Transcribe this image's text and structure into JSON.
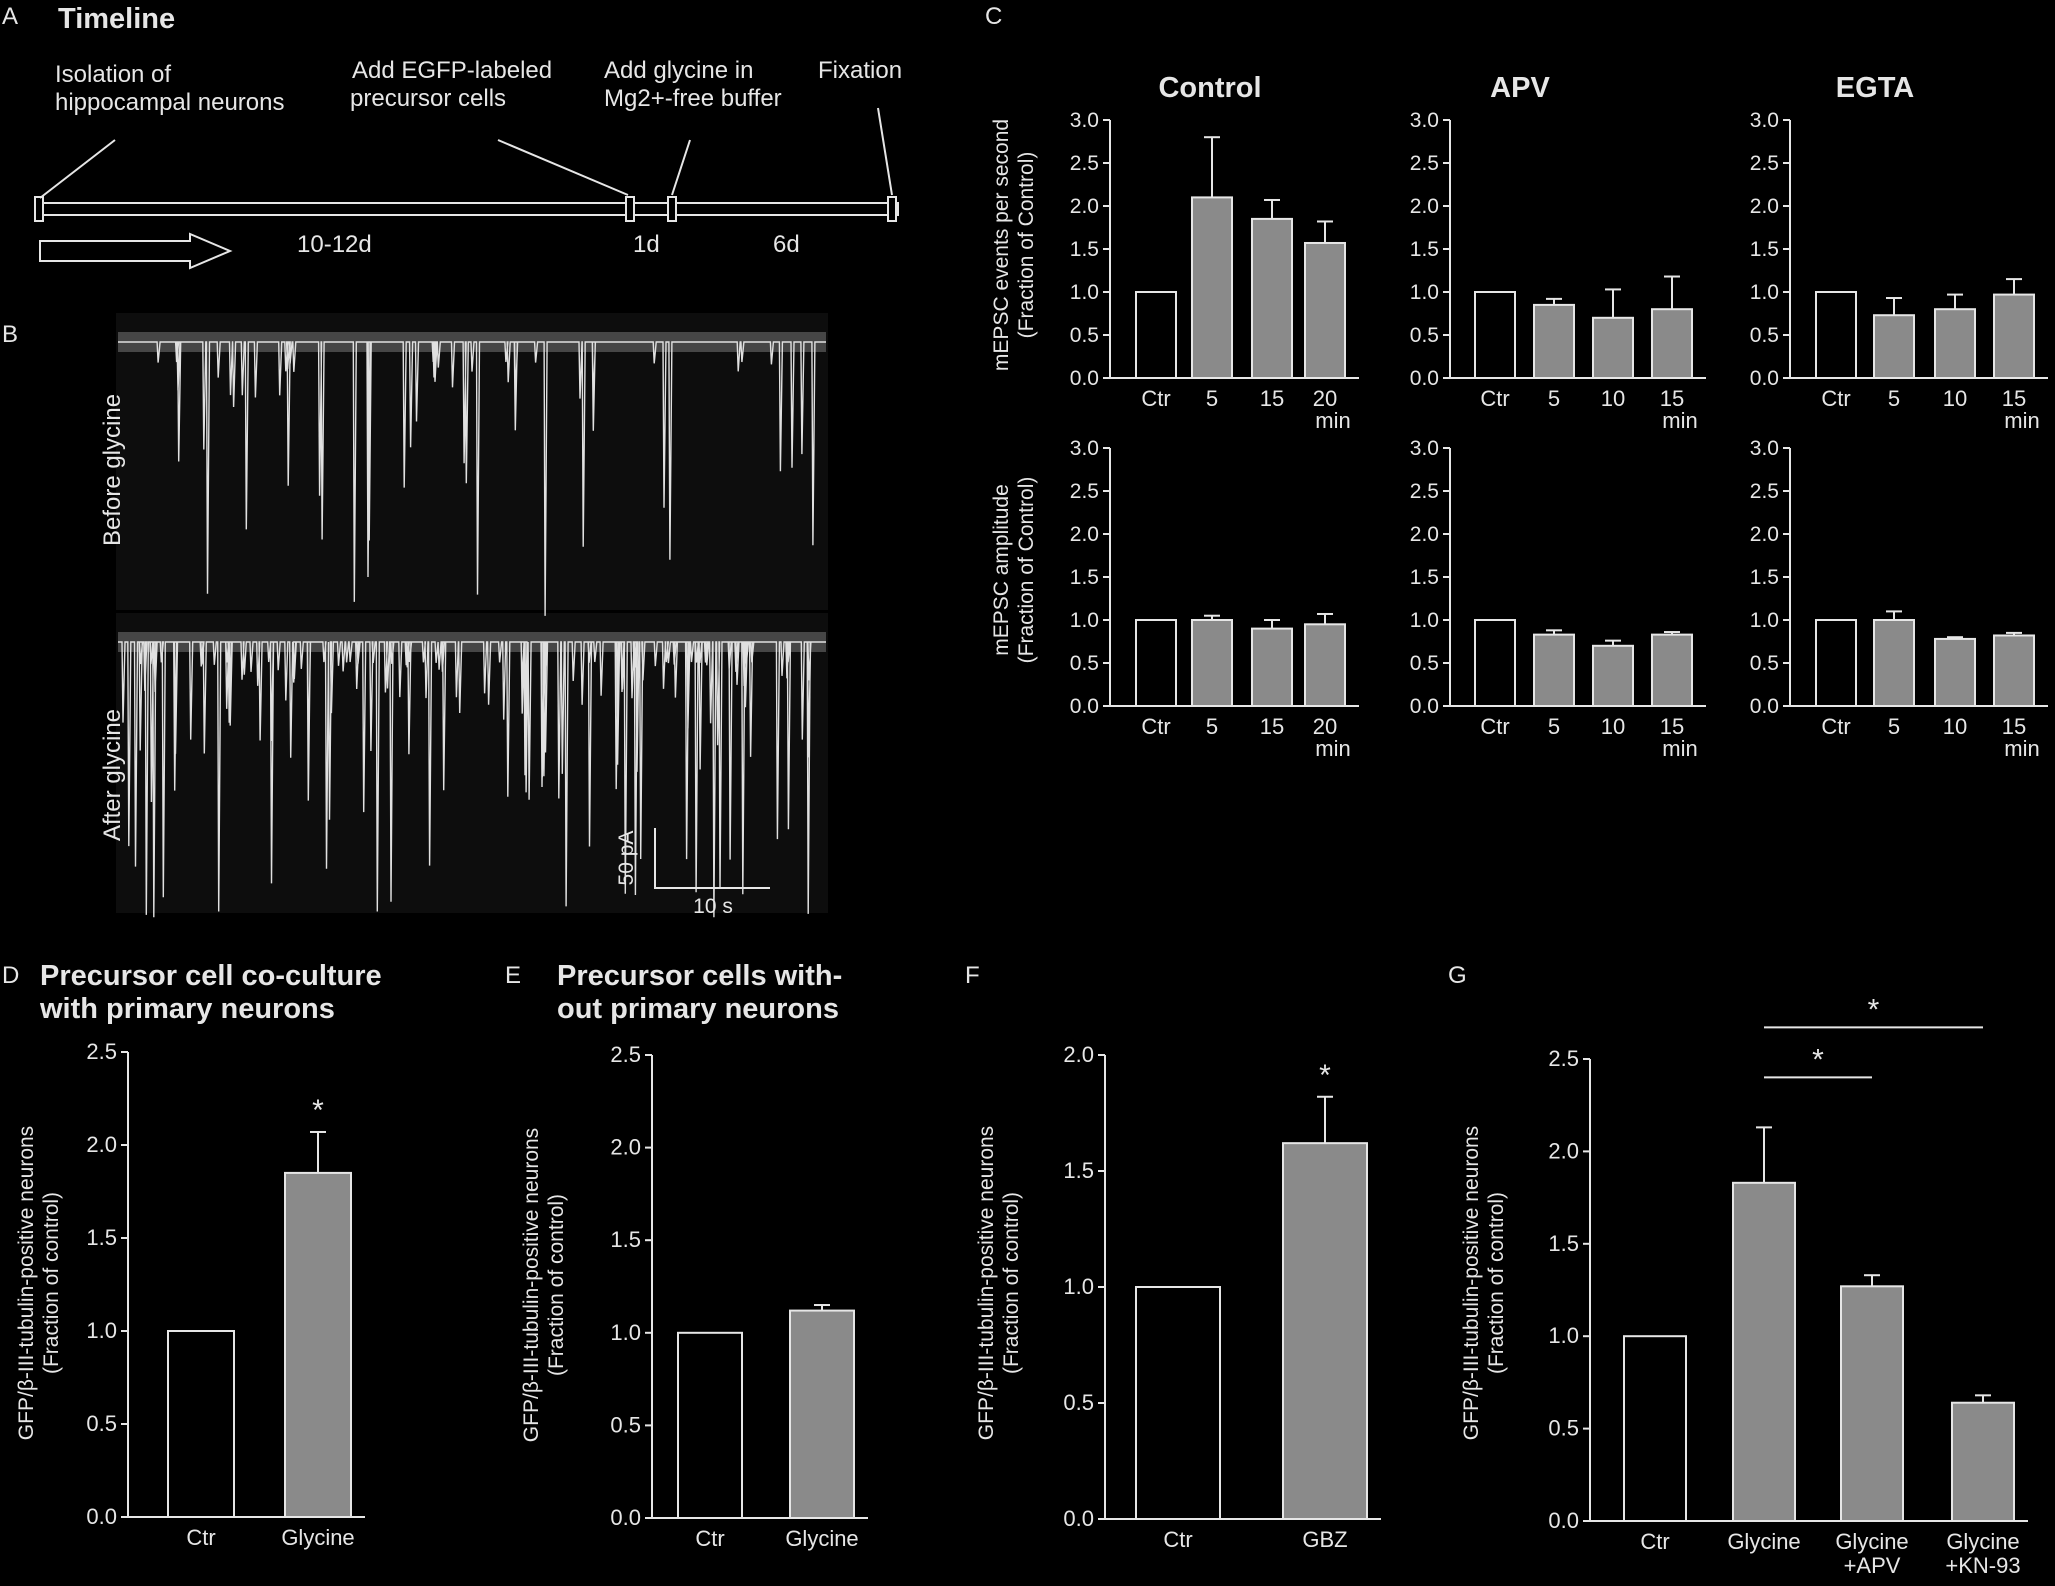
{
  "colors": {
    "background": "#000000",
    "foreground": "#e6e6e6",
    "bar_ctr": "#000000",
    "bar_treat": "#8a8a8a"
  },
  "panelA": {
    "label": "A",
    "title": "Timeline",
    "events": [
      {
        "line1": "Isolation of",
        "line2": "hippocampal neurons"
      },
      {
        "line1": "Add EGFP-labeled",
        "line2": "precursor cells"
      },
      {
        "line1": "Add glycine in",
        "line2": "Mg2+-free buffer"
      },
      {
        "line1": "Fixation",
        "line2": ""
      }
    ],
    "durations": [
      "10-12d",
      "1d",
      "6d"
    ]
  },
  "panelB": {
    "label": "B",
    "trace_top": "Before glycine",
    "trace_bottom": "After glycine",
    "scale_y": "50 pA",
    "scale_x": "10 s"
  },
  "panelC": {
    "label": "C",
    "titles": [
      "Control",
      "APV",
      "EGTA"
    ],
    "ylabel_top": [
      "mEPSC events per second",
      "(Fraction of Control)"
    ],
    "ylabel_bottom": [
      "mEPSC amplitude",
      "(Fraction of Control)"
    ],
    "unit": "min"
  },
  "panelD": {
    "label": "D",
    "title": [
      "Precursor cell co-culture",
      "with primary neurons"
    ]
  },
  "panelE": {
    "label": "E",
    "title": [
      "Precursor cells with-",
      "out primary neurons"
    ]
  },
  "panelF": {
    "label": "F"
  },
  "panelG": {
    "label": "G"
  },
  "ylabel_bottom_panels": [
    "GFP/β-III-tubulin-positive neurons",
    "(Fraction of control)"
  ],
  "chart_data": [
    {
      "id": "C-control-freq",
      "type": "bar",
      "title": "Control",
      "categories": [
        "Ctr",
        "5",
        "15",
        "20"
      ],
      "values": [
        1.0,
        2.1,
        1.85,
        1.57
      ],
      "errors": [
        0,
        0.7,
        0.22,
        0.25
      ],
      "ylim": [
        0,
        3
      ],
      "yticks": [
        "0.0",
        "0.5",
        "1.0",
        "1.5",
        "2.0",
        "2.5",
        "3.0"
      ],
      "ylabel": "mEPSC events per second (Fraction of Control)",
      "xunit": "min"
    },
    {
      "id": "C-apv-freq",
      "type": "bar",
      "title": "APV",
      "categories": [
        "Ctr",
        "5",
        "10",
        "15"
      ],
      "values": [
        1.0,
        0.85,
        0.7,
        0.8
      ],
      "errors": [
        0,
        0.07,
        0.33,
        0.38
      ],
      "ylim": [
        0,
        3
      ],
      "yticks": [
        "0.0",
        "0.5",
        "1.0",
        "1.5",
        "2.0",
        "2.5",
        "3.0"
      ],
      "xunit": "min"
    },
    {
      "id": "C-egta-freq",
      "type": "bar",
      "title": "EGTA",
      "categories": [
        "Ctr",
        "5",
        "10",
        "15"
      ],
      "values": [
        1.0,
        0.73,
        0.8,
        0.97
      ],
      "errors": [
        0,
        0.2,
        0.17,
        0.18
      ],
      "ylim": [
        0,
        3
      ],
      "yticks": [
        "0.0",
        "0.5",
        "1.0",
        "1.5",
        "2.0",
        "2.5",
        "3.0"
      ],
      "xunit": "min"
    },
    {
      "id": "C-control-amp",
      "type": "bar",
      "categories": [
        "Ctr",
        "5",
        "15",
        "20"
      ],
      "values": [
        1.0,
        1.0,
        0.9,
        0.95
      ],
      "errors": [
        0,
        0.05,
        0.1,
        0.12
      ],
      "ylim": [
        0,
        3
      ],
      "yticks": [
        "0.0",
        "0.5",
        "1.0",
        "1.5",
        "2.0",
        "2.5",
        "3.0"
      ],
      "ylabel": "mEPSC amplitude (Fraction of Control)",
      "xunit": "min"
    },
    {
      "id": "C-apv-amp",
      "type": "bar",
      "categories": [
        "Ctr",
        "5",
        "10",
        "15"
      ],
      "values": [
        1.0,
        0.83,
        0.7,
        0.83
      ],
      "errors": [
        0,
        0.05,
        0.06,
        0.03
      ],
      "ylim": [
        0,
        3
      ],
      "yticks": [
        "0.0",
        "0.5",
        "1.0",
        "1.5",
        "2.0",
        "2.5",
        "3.0"
      ],
      "xunit": "min"
    },
    {
      "id": "C-egta-amp",
      "type": "bar",
      "categories": [
        "Ctr",
        "5",
        "10",
        "15"
      ],
      "values": [
        1.0,
        1.0,
        0.78,
        0.82
      ],
      "errors": [
        0,
        0.1,
        0.02,
        0.03
      ],
      "ylim": [
        0,
        3
      ],
      "yticks": [
        "0.0",
        "0.5",
        "1.0",
        "1.5",
        "2.0",
        "2.5",
        "3.0"
      ],
      "xunit": "min"
    },
    {
      "id": "D",
      "type": "bar",
      "categories": [
        "Ctr",
        "Glycine"
      ],
      "values": [
        1.0,
        1.85
      ],
      "errors": [
        0,
        0.22
      ],
      "ylim": [
        0,
        2.5
      ],
      "yticks": [
        "0.0",
        "0.5",
        "1.0",
        "1.5",
        "2.0",
        "2.5"
      ],
      "significance": [
        {
          "bar": 1,
          "label": "*"
        }
      ],
      "ylabel": "GFP/β-III-tubulin-positive neurons (Fraction of control)"
    },
    {
      "id": "E",
      "type": "bar",
      "categories": [
        "Ctr",
        "Glycine"
      ],
      "values": [
        1.0,
        1.12
      ],
      "errors": [
        0,
        0.03
      ],
      "ylim": [
        0,
        2.5
      ],
      "yticks": [
        "0.0",
        "0.5",
        "1.0",
        "1.5",
        "2.0",
        "2.5"
      ],
      "ylabel": "GFP/β-III-tubulin-positive neurons (Fraction of control)"
    },
    {
      "id": "F",
      "type": "bar",
      "categories": [
        "Ctr",
        "GBZ"
      ],
      "values": [
        1.0,
        1.62
      ],
      "errors": [
        0,
        0.2
      ],
      "ylim": [
        0,
        2.0
      ],
      "yticks": [
        "0.0",
        "0.5",
        "1.0",
        "1.5",
        "2.0"
      ],
      "significance": [
        {
          "bar": 1,
          "label": "*"
        }
      ],
      "ylabel": "GFP/β-III-tubulin-positive neurons (Fraction of control)"
    },
    {
      "id": "G",
      "type": "bar",
      "categories": [
        [
          "Ctr"
        ],
        [
          "Glycine"
        ],
        [
          "Glycine",
          "+APV"
        ],
        [
          "Glycine",
          "+KN-93"
        ]
      ],
      "values": [
        1.0,
        1.83,
        1.27,
        0.64
      ],
      "errors": [
        0,
        0.3,
        0.06,
        0.04
      ],
      "ylim": [
        0,
        2.5
      ],
      "yticks": [
        "0.0",
        "0.5",
        "1.0",
        "1.5",
        "2.0",
        "2.5"
      ],
      "brackets": [
        {
          "from": 1,
          "to": 2,
          "label": "*"
        },
        {
          "from": 1,
          "to": 3,
          "label": "*"
        }
      ],
      "ylabel": "GFP/β-III-tubulin-positive neurons (Fraction of control)"
    }
  ]
}
